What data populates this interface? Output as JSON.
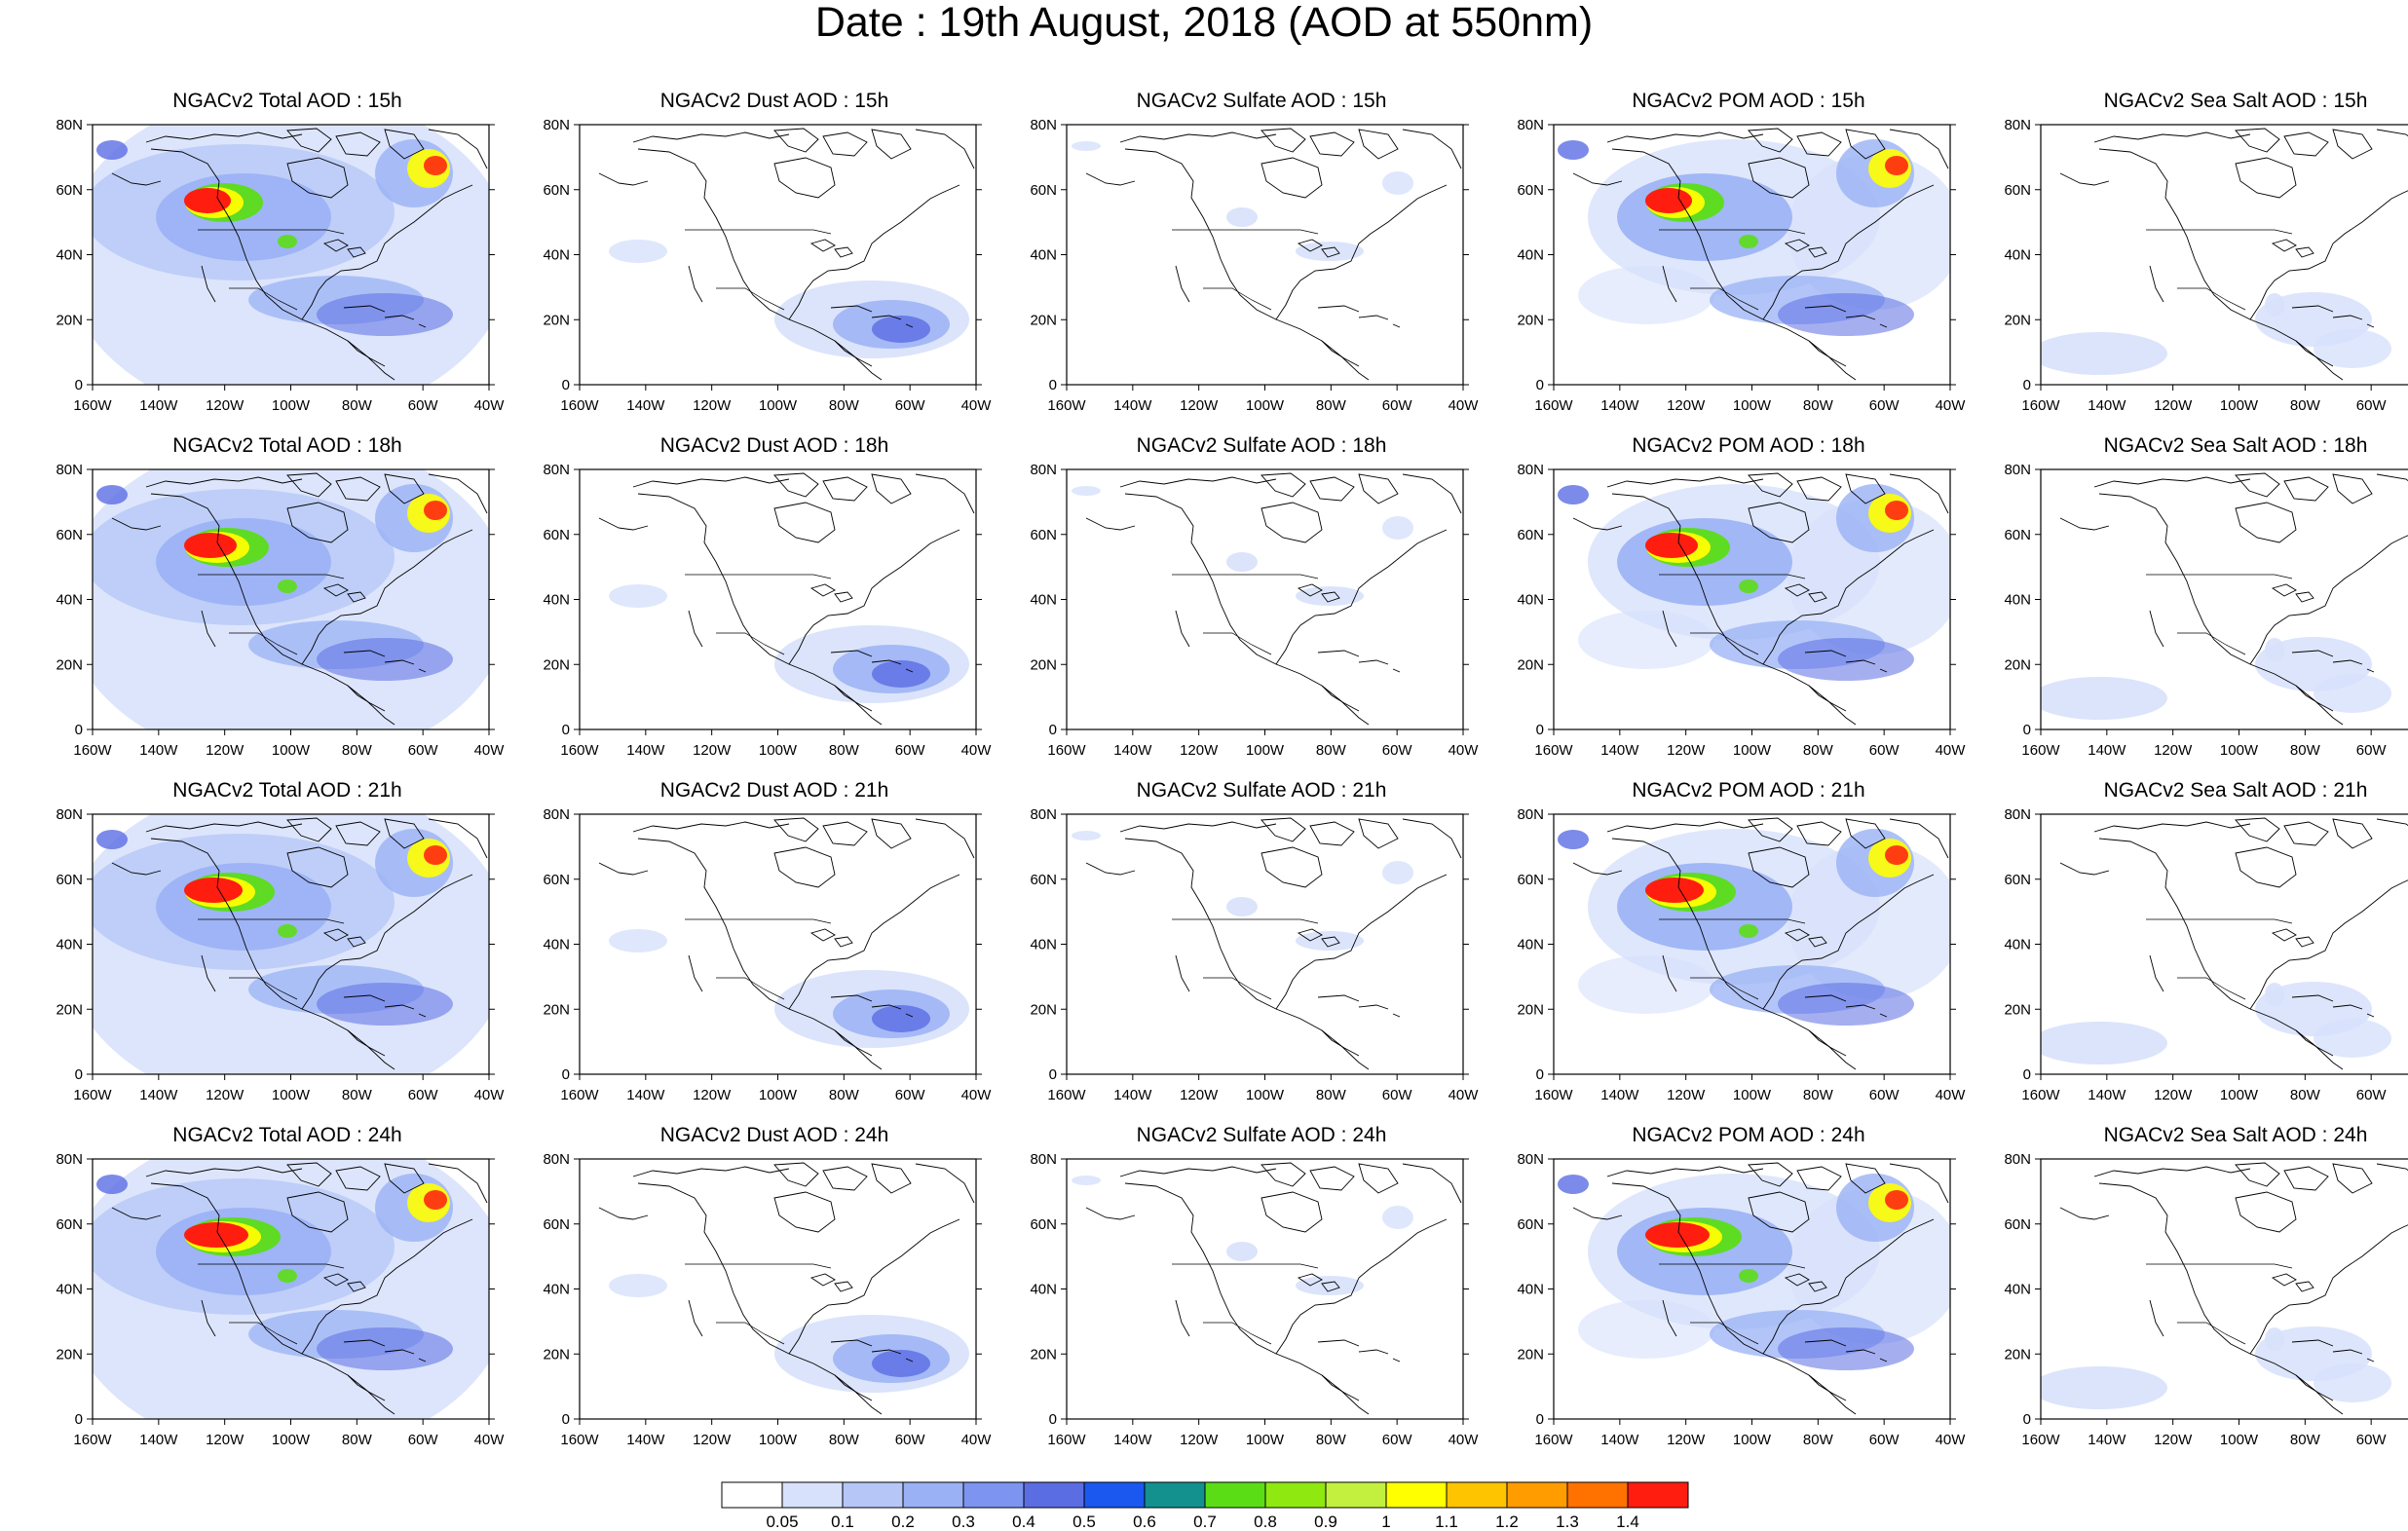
{
  "title": "Date : 19th August, 2018 (AOD at 550nm)",
  "lat_labels": [
    "80N",
    "60N",
    "40N",
    "20N",
    "0"
  ],
  "lon_labels": [
    "160W",
    "140W",
    "120W",
    "100W",
    "80W",
    "60W",
    "40W"
  ],
  "panels": [
    [
      "NGACv2 Total AOD : 15h",
      "NGACv2 Dust AOD : 15h",
      "NGACv2 Sulfate AOD : 15h",
      "NGACv2 POM AOD : 15h",
      "NGACv2 Sea Salt AOD : 15h"
    ],
    [
      "NGACv2 Total AOD : 18h",
      "NGACv2 Dust AOD : 18h",
      "NGACv2 Sulfate AOD : 18h",
      "NGACv2 POM AOD : 18h",
      "NGACv2 Sea Salt AOD : 18h"
    ],
    [
      "NGACv2 Total AOD : 21h",
      "NGACv2 Dust AOD : 21h",
      "NGACv2 Sulfate AOD : 21h",
      "NGACv2 POM AOD : 21h",
      "NGACv2 Sea Salt AOD : 21h"
    ],
    [
      "NGACv2 Total AOD : 24h",
      "NGACv2 Dust AOD : 24h",
      "NGACv2 Sulfate AOD : 24h",
      "NGACv2 POM AOD : 24h",
      "NGACv2 Sea Salt  AOD : 24h"
    ]
  ],
  "colorbar": {
    "labels": [
      "0.05",
      "0.1",
      "0.2",
      "0.3",
      "0.4",
      "0.5",
      "0.6",
      "0.7",
      "0.8",
      "0.9",
      "1",
      "1.1",
      "1.2",
      "1.3",
      "1.4"
    ],
    "colors": [
      "#ffffff",
      "#d7e1fb",
      "#b6c6f6",
      "#9ab1f5",
      "#7d95f0",
      "#5b6de3",
      "#1a58f0",
      "#12918f",
      "#5bdd16",
      "#8fe810",
      "#c3f03e",
      "#ffff00",
      "#ffc400",
      "#ff9d00",
      "#ff7200",
      "#ff1d10"
    ]
  },
  "map_colors": {
    "land_outline": "#000000",
    "light_aod": "#d7e1fb",
    "mid_aod": "#9ab1f5",
    "strong_aod": "#5b6de3",
    "plume_green": "#5bdd16",
    "plume_yellow": "#ffff00",
    "plume_red": "#ff1d10"
  }
}
